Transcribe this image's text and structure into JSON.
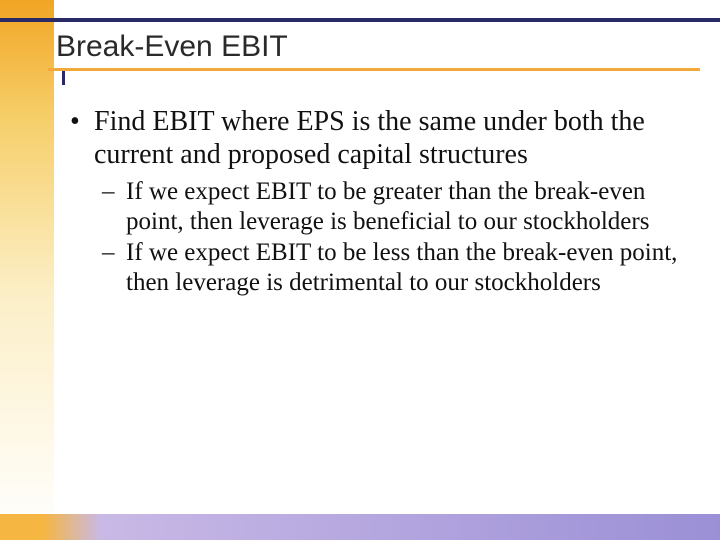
{
  "title": "Break-Even EBIT",
  "bullets": {
    "main": "Find EBIT where EPS is the same under both the current and proposed capital structures",
    "sub1": "If we expect EBIT to be greater than the break-even point, then leverage is beneficial to our stockholders",
    "sub2": "If we expect EBIT to be less than the break-even point, then leverage is detrimental to our stockholders"
  },
  "style": {
    "rule_color": "#2a2a66",
    "underline_color": "#f2a93c",
    "left_grad_top": "#f2a524",
    "left_grad_mid": "#f6cf6a",
    "left_grad_bot": "#fcefc8",
    "band_left": "#f5b642",
    "band_mid": "#c9b9e6",
    "band_right": "#9b8fd6",
    "top_rule_y": "18",
    "underline_y": "68",
    "tick_x": "62",
    "tick_y": "71",
    "title_fontsize": "30",
    "bullet_fontsize": "28",
    "sub_fontsize": "25"
  }
}
